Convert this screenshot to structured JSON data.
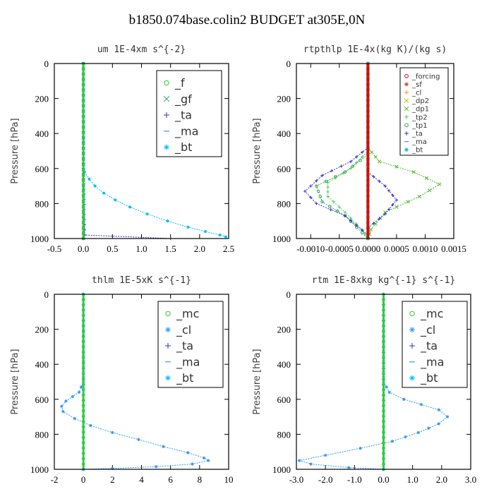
{
  "page": {
    "title": "b1850.074base.colin2  BUDGET at305E,0N"
  },
  "chart_data": [
    {
      "type": "line",
      "title": "um  1E-4xm s^{-2}",
      "ylabel": "Pressure [hPa]",
      "xlim": [
        -0.5,
        2.5
      ],
      "ylim": [
        1000,
        0
      ],
      "xticks": [
        "-0.5",
        "0.0",
        "0.5",
        "1.0",
        "1.5",
        "2.0",
        "2.5"
      ],
      "yticks": [
        "0",
        "200",
        "400",
        "600",
        "800",
        "1000"
      ],
      "legend": {
        "position": "top-right",
        "font": 16,
        "entries": [
          "_f",
          "_gf",
          "_ta",
          "_ma",
          "_bt"
        ]
      },
      "series": [
        {
          "name": "_f",
          "color": "#33cc33",
          "marker": "o",
          "points": [
            [
              0,
              0
            ],
            [
              0,
              1000
            ]
          ]
        },
        {
          "name": "_gf",
          "color": "#22aa66",
          "marker": "x",
          "points": [
            [
              0,
              0
            ],
            [
              0,
              1000
            ]
          ]
        },
        {
          "name": "_ta",
          "color": "#3333cc",
          "marker": "+",
          "points": [
            [
              0,
              0
            ],
            [
              0,
              600
            ],
            [
              0.02,
              980
            ],
            [
              1.5,
              1000
            ]
          ]
        },
        {
          "name": "_ma",
          "color": "#3399ff",
          "marker": "-",
          "points": [
            [
              0,
              0
            ],
            [
              0,
              1000
            ]
          ]
        },
        {
          "name": "_bt",
          "color": "#00bbff",
          "marker": "*",
          "points": [
            [
              0,
              0
            ],
            [
              0,
              580
            ],
            [
              0.02,
              620
            ],
            [
              0.1,
              660
            ],
            [
              0.2,
              700
            ],
            [
              0.35,
              740
            ],
            [
              0.55,
              780
            ],
            [
              0.8,
              820
            ],
            [
              1.1,
              860
            ],
            [
              1.45,
              900
            ],
            [
              1.8,
              935
            ],
            [
              2.1,
              960
            ],
            [
              2.35,
              980
            ],
            [
              2.45,
              990
            ]
          ]
        }
      ]
    },
    {
      "type": "line",
      "title": "rtpthlp  1E-4x(kg K)/(kg s)",
      "ylabel": "Pressure [hPa]",
      "xlim": [
        -0.00125,
        0.0015
      ],
      "ylim": [
        1000,
        0
      ],
      "xticks": [
        "-0.0010",
        "-0.0005",
        "0.0000",
        "0.0005",
        "0.0010",
        "0.0015"
      ],
      "yticks": [
        "0",
        "200",
        "400",
        "600",
        "800",
        "1000"
      ],
      "legend": {
        "position": "top-right",
        "font": 10,
        "entries": [
          "_forcing",
          "_sf",
          "_cl",
          "_dp2",
          "_dp1",
          "_tp2",
          "_tp1",
          "_ta",
          "_ma",
          "_bt"
        ]
      },
      "series": [
        {
          "name": "_forcing",
          "color": "#cc1111",
          "marker": "o",
          "points": [
            [
              0,
              0
            ],
            [
              0,
              1000
            ]
          ]
        },
        {
          "name": "_sf",
          "color": "#dd4444",
          "marker": "*",
          "points": [
            [
              0,
              0
            ],
            [
              0,
              1000
            ]
          ]
        },
        {
          "name": "_cl",
          "color": "#ff9900",
          "marker": "+",
          "points": [
            [
              0,
              0
            ],
            [
              0,
              1000
            ]
          ]
        },
        {
          "name": "_dp2",
          "color": "#ddbb00",
          "marker": "x",
          "points": [
            [
              0,
              0
            ],
            [
              0,
              1000
            ]
          ]
        },
        {
          "name": "_dp1",
          "color": "#44bb22",
          "marker": "x",
          "points": [
            [
              0,
              0
            ],
            [
              0,
              480
            ],
            [
              0.0002,
              560
            ],
            [
              0.0008,
              620
            ],
            [
              0.00125,
              690
            ],
            [
              0.0009,
              760
            ],
            [
              0.0003,
              850
            ],
            [
              5e-05,
              950
            ],
            [
              0,
              1000
            ]
          ]
        },
        {
          "name": "_tp2",
          "color": "#55cc55",
          "marker": "+",
          "points": [
            [
              0,
              0
            ],
            [
              0,
              500
            ],
            [
              -0.0003,
              600
            ],
            [
              -0.0007,
              680
            ],
            [
              -0.0007,
              760
            ],
            [
              -0.0004,
              850
            ],
            [
              -0.0001,
              950
            ],
            [
              0,
              1000
            ]
          ]
        },
        {
          "name": "_tp1",
          "color": "#33aa55",
          "marker": "o",
          "points": [
            [
              0,
              0
            ],
            [
              0,
              520
            ],
            [
              -0.0004,
              620
            ],
            [
              -0.0009,
              700
            ],
            [
              -0.0008,
              790
            ],
            [
              -0.0004,
              870
            ],
            [
              0,
              1000
            ]
          ]
        },
        {
          "name": "_ta",
          "color": "#3333cc",
          "marker": "+",
          "points": [
            [
              0,
              0
            ],
            [
              0,
              480
            ],
            [
              -0.0003,
              560
            ],
            [
              -0.0008,
              640
            ],
            [
              -0.0011,
              730
            ],
            [
              -0.0009,
              800
            ],
            [
              -0.0004,
              870
            ],
            [
              0,
              980
            ]
          ]
        },
        {
          "name": "_ma",
          "color": "#3399ff",
          "marker": "-",
          "points": [
            [
              0,
              0
            ],
            [
              0,
              1000
            ]
          ]
        },
        {
          "name": "_bt",
          "color": "#00bbff",
          "marker": "*",
          "points": [
            [
              0,
              0
            ],
            [
              0,
              1000
            ]
          ]
        }
      ],
      "extra_series": [
        {
          "name": "_ta_right",
          "color": "#3333cc",
          "marker": "+",
          "points": [
            [
              0,
              620
            ],
            [
              0.0003,
              700
            ],
            [
              0.0005,
              780
            ],
            [
              0.0003,
              860
            ],
            [
              0,
              940
            ]
          ]
        }
      ]
    },
    {
      "type": "line",
      "title": "thlm  1E-5xK s^{-1}",
      "ylabel": "Pressure [hPa]",
      "xlim": [
        -2,
        10
      ],
      "ylim": [
        1000,
        0
      ],
      "xticks": [
        "-2",
        "0",
        "2",
        "4",
        "6",
        "8",
        "10"
      ],
      "yticks": [
        "0",
        "200",
        "400",
        "600",
        "800",
        "1000"
      ],
      "legend": {
        "position": "top-right",
        "font": 16,
        "entries": [
          "_mc",
          "_cl",
          "_ta",
          "_ma",
          "_bt"
        ]
      },
      "series": [
        {
          "name": "_mc",
          "color": "#33cc33",
          "marker": "o",
          "points": [
            [
              0,
              0
            ],
            [
              0,
              1000
            ]
          ]
        },
        {
          "name": "_cl",
          "color": "#3399ff",
          "marker": "*",
          "points": [
            [
              0,
              0
            ],
            [
              0,
              500
            ],
            [
              -0.3,
              560
            ],
            [
              -1.2,
              610
            ],
            [
              -1.5,
              640
            ],
            [
              -1.4,
              670
            ],
            [
              -0.6,
              710
            ],
            [
              0.5,
              750
            ],
            [
              2,
              790
            ],
            [
              3.8,
              830
            ],
            [
              5.5,
              870
            ],
            [
              7.2,
              905
            ],
            [
              8.3,
              935
            ],
            [
              8.6,
              950
            ],
            [
              7.5,
              970
            ],
            [
              5,
              985
            ],
            [
              2,
              995
            ],
            [
              0,
              1000
            ]
          ]
        },
        {
          "name": "_ta",
          "color": "#3333cc",
          "marker": "+",
          "points": [
            [
              0,
              0
            ],
            [
              0,
              1000
            ]
          ]
        },
        {
          "name": "_ma",
          "color": "#3399ff",
          "marker": "-",
          "points": [
            [
              0,
              0
            ],
            [
              0,
              1000
            ]
          ]
        },
        {
          "name": "_bt",
          "color": "#00bbff",
          "marker": "*",
          "points": [
            [
              0,
              0
            ],
            [
              0,
              1000
            ]
          ]
        }
      ]
    },
    {
      "type": "line",
      "title": "rtm  1E-8xkg kg^{-1} s^{-1}",
      "ylabel": "Pressure [hPa]",
      "xlim": [
        -3,
        3
      ],
      "ylim": [
        1000,
        0
      ],
      "xticks": [
        "-3.0",
        "-2.0",
        "-1.0",
        "0.0",
        "1.0",
        "2.0",
        "3.0"
      ],
      "yticks": [
        "0",
        "200",
        "400",
        "600",
        "800",
        "1000"
      ],
      "legend": {
        "position": "top-right",
        "font": 16,
        "entries": [
          "_mc",
          "_cl",
          "_ta",
          "_ma",
          "_bt"
        ]
      },
      "series": [
        {
          "name": "_mc",
          "color": "#33cc33",
          "marker": "o",
          "points": [
            [
              0,
              0
            ],
            [
              0,
              1000
            ]
          ]
        },
        {
          "name": "_cl",
          "color": "#3399ff",
          "marker": "*",
          "points": [
            [
              0,
              0
            ],
            [
              0,
              500
            ],
            [
              0.2,
              560
            ],
            [
              0.7,
              600
            ],
            [
              1.3,
              630
            ],
            [
              1.9,
              660
            ],
            [
              2.2,
              700
            ],
            [
              1.9,
              740
            ],
            [
              1.2,
              790
            ],
            [
              0.3,
              840
            ],
            [
              -0.8,
              880
            ],
            [
              -2.0,
              920
            ],
            [
              -2.9,
              950
            ],
            [
              -2.5,
              970
            ],
            [
              -1.2,
              990
            ],
            [
              0,
              1000
            ]
          ]
        },
        {
          "name": "_ta",
          "color": "#3333cc",
          "marker": "+",
          "points": [
            [
              0,
              0
            ],
            [
              0,
              1000
            ]
          ]
        },
        {
          "name": "_ma",
          "color": "#3399ff",
          "marker": "-",
          "points": [
            [
              0,
              0
            ],
            [
              0,
              1000
            ]
          ]
        },
        {
          "name": "_bt",
          "color": "#00bbff",
          "marker": "*",
          "points": [
            [
              0,
              0
            ],
            [
              0,
              1000
            ]
          ]
        }
      ]
    }
  ]
}
